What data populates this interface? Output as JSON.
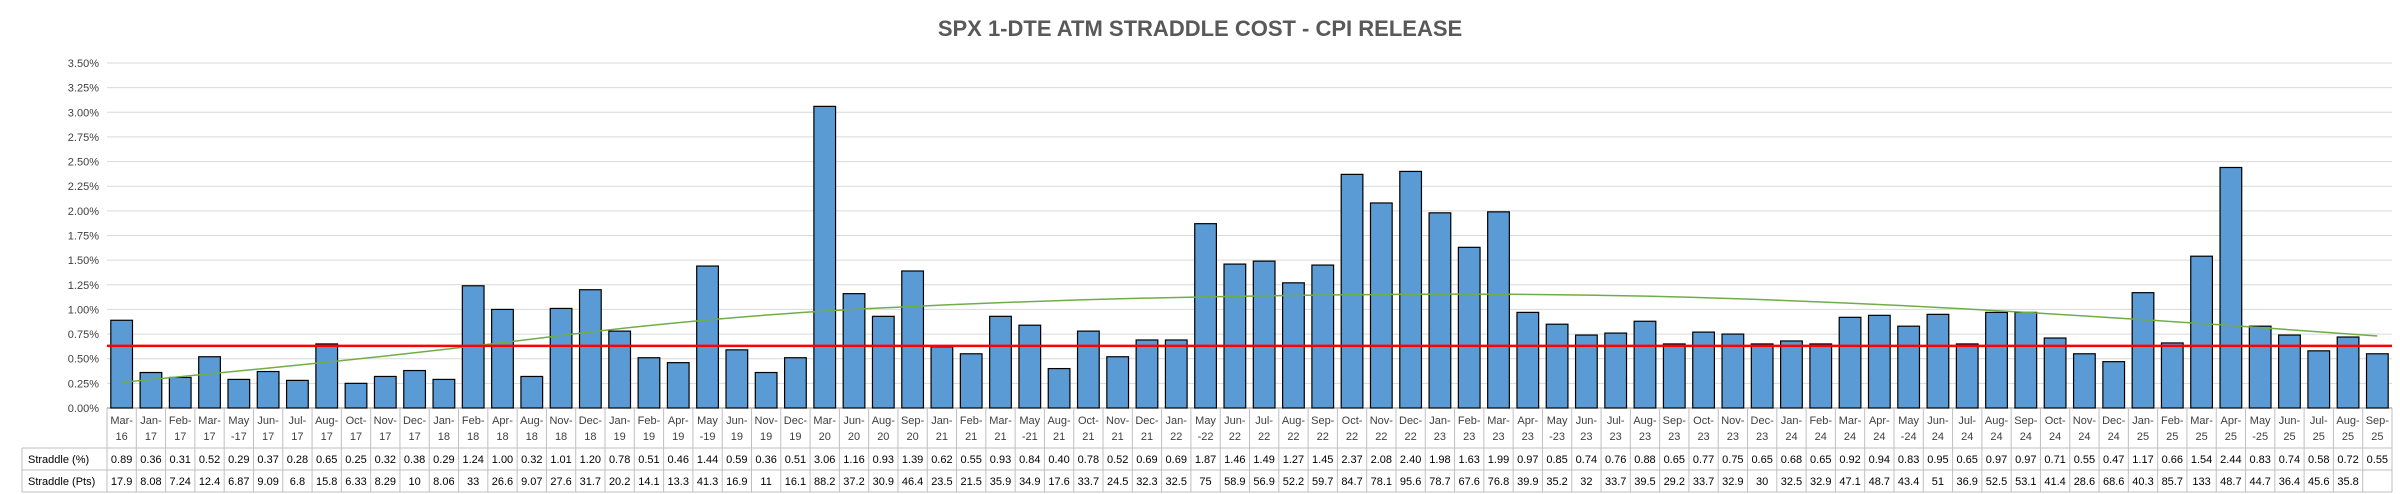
{
  "chart_data": {
    "type": "bar",
    "title": "SPX 1-DTE ATM STRADDLE COST - CPI RELEASE",
    "xlabel": "",
    "ylabel": "",
    "ylim": [
      0,
      3.5
    ],
    "yticks": [
      "0.00%",
      "0.25%",
      "0.50%",
      "0.75%",
      "1.00%",
      "1.25%",
      "1.50%",
      "1.75%",
      "2.00%",
      "2.25%",
      "2.50%",
      "2.75%",
      "3.00%",
      "3.25%",
      "3.50%"
    ],
    "grid": true,
    "categories": [
      [
        "Mar-",
        "16"
      ],
      [
        "Jan-",
        "17"
      ],
      [
        "Feb-",
        "17"
      ],
      [
        "Mar-",
        "17"
      ],
      [
        "May",
        "-17"
      ],
      [
        "Jun-",
        "17"
      ],
      [
        "Jul-",
        "17"
      ],
      [
        "Aug-",
        "17"
      ],
      [
        "Oct-",
        "17"
      ],
      [
        "Nov-",
        "17"
      ],
      [
        "Dec-",
        "17"
      ],
      [
        "Jan-",
        "18"
      ],
      [
        "Feb-",
        "18"
      ],
      [
        "Apr-",
        "18"
      ],
      [
        "Aug-",
        "18"
      ],
      [
        "Nov-",
        "18"
      ],
      [
        "Dec-",
        "18"
      ],
      [
        "Jan-",
        "19"
      ],
      [
        "Feb-",
        "19"
      ],
      [
        "Apr-",
        "19"
      ],
      [
        "May",
        "-19"
      ],
      [
        "Jun-",
        "19"
      ],
      [
        "Nov-",
        "19"
      ],
      [
        "Dec-",
        "19"
      ],
      [
        "Mar-",
        "20"
      ],
      [
        "Jun-",
        "20"
      ],
      [
        "Aug-",
        "20"
      ],
      [
        "Sep-",
        "20"
      ],
      [
        "Jan-",
        "21"
      ],
      [
        "Feb-",
        "21"
      ],
      [
        "Mar-",
        "21"
      ],
      [
        "May",
        "-21"
      ],
      [
        "Aug-",
        "21"
      ],
      [
        "Oct-",
        "21"
      ],
      [
        "Nov-",
        "21"
      ],
      [
        "Dec-",
        "21"
      ],
      [
        "Jan-",
        "22"
      ],
      [
        "May",
        "-22"
      ],
      [
        "Jun-",
        "22"
      ],
      [
        "Jul-",
        "22"
      ],
      [
        "Aug-",
        "22"
      ],
      [
        "Sep-",
        "22"
      ],
      [
        "Oct-",
        "22"
      ],
      [
        "Nov-",
        "22"
      ],
      [
        "Dec-",
        "22"
      ],
      [
        "Jan-",
        "23"
      ],
      [
        "Feb-",
        "23"
      ],
      [
        "Mar-",
        "23"
      ],
      [
        "Apr-",
        "23"
      ],
      [
        "May",
        "-23"
      ],
      [
        "Jun-",
        "23"
      ],
      [
        "Jul-",
        "23"
      ],
      [
        "Aug-",
        "23"
      ],
      [
        "Sep-",
        "23"
      ],
      [
        "Oct-",
        "23"
      ],
      [
        "Nov-",
        "23"
      ],
      [
        "Dec-",
        "23"
      ],
      [
        "Jan-",
        "24"
      ],
      [
        "Feb-",
        "24"
      ],
      [
        "Mar-",
        "24"
      ],
      [
        "Apr-",
        "24"
      ],
      [
        "May",
        "-24"
      ],
      [
        "Jun-",
        "24"
      ],
      [
        "Jul-",
        "24"
      ],
      [
        "Aug-",
        "24"
      ],
      [
        "Sep-",
        "24"
      ],
      [
        "Oct-",
        "24"
      ],
      [
        "Nov-",
        "24"
      ],
      [
        "Dec-",
        "24"
      ],
      [
        "Jan-",
        "25"
      ],
      [
        "Feb-",
        "25"
      ],
      [
        "Mar-",
        "25"
      ],
      [
        "Apr-",
        "25"
      ],
      [
        "May",
        "-25"
      ],
      [
        "Jun-",
        "25"
      ],
      [
        "Jul-",
        "25"
      ],
      [
        "Aug-",
        "25"
      ],
      [
        "Sep-",
        "25"
      ]
    ],
    "series": [
      {
        "name": "Straddle (%)",
        "color": "#5B9BD5",
        "values": [
          0.89,
          0.36,
          0.31,
          0.52,
          0.29,
          0.37,
          0.28,
          0.65,
          0.25,
          0.32,
          0.38,
          0.29,
          1.24,
          1.0,
          0.32,
          1.01,
          1.2,
          0.78,
          0.51,
          0.46,
          1.44,
          0.59,
          0.36,
          0.51,
          3.06,
          1.16,
          0.93,
          1.39,
          0.62,
          0.55,
          0.93,
          0.84,
          0.4,
          0.78,
          0.52,
          0.69,
          0.69,
          1.87,
          1.46,
          1.49,
          1.27,
          1.45,
          2.37,
          2.08,
          2.4,
          1.98,
          1.63,
          1.99,
          0.97,
          0.85,
          0.74,
          0.76,
          0.88,
          0.65,
          0.77,
          0.75,
          0.65,
          0.68,
          0.65,
          0.92,
          0.94,
          0.83,
          0.95,
          0.65,
          0.97,
          0.97,
          0.71,
          0.55,
          0.47,
          1.17,
          0.66,
          1.54,
          2.44,
          0.83,
          0.74,
          0.58,
          0.72,
          0.55
        ],
        "display": [
          "0.89",
          "0.36",
          "0.31",
          "0.52",
          "0.29",
          "0.37",
          "0.28",
          "0.65",
          "0.25",
          "0.32",
          "0.38",
          "0.29",
          "1.24",
          "1.00",
          "0.32",
          "1.01",
          "1.20",
          "0.78",
          "0.51",
          "0.46",
          "1.44",
          "0.59",
          "0.36",
          "0.51",
          "3.06",
          "1.16",
          "0.93",
          "1.39",
          "0.62",
          "0.55",
          "0.93",
          "0.84",
          "0.40",
          "0.78",
          "0.52",
          "0.69",
          "0.69",
          "1.87",
          "1.46",
          "1.49",
          "1.27",
          "1.45",
          "2.37",
          "2.08",
          "2.40",
          "1.98",
          "1.63",
          "1.99",
          "0.97",
          "0.85",
          "0.74",
          "0.76",
          "0.88",
          "0.65",
          "0.77",
          "0.75",
          "0.65",
          "0.68",
          "0.65",
          "0.92",
          "0.94",
          "0.83",
          "0.95",
          "0.65",
          "0.97",
          "0.97",
          "0.71",
          "0.55",
          "0.47",
          "1.17",
          "0.66",
          "1.54",
          "2.44",
          "0.83",
          "0.74",
          "0.58",
          "0.72",
          "0.55"
        ]
      },
      {
        "name": "Straddle (Pts)",
        "display": [
          "17.9",
          "8.08",
          "7.24",
          "12.4",
          "6.87",
          "9.09",
          "6.8",
          "15.8",
          "6.33",
          "8.29",
          "10",
          "8.06",
          "33",
          "26.6",
          "9.07",
          "27.6",
          "31.7",
          "20.2",
          "14.1",
          "13.3",
          "41.3",
          "16.9",
          "11",
          "16.1",
          "88.2",
          "37.2",
          "30.9",
          "46.4",
          "23.5",
          "21.5",
          "35.9",
          "34.9",
          "17.6",
          "33.7",
          "24.5",
          "32.3",
          "32.5",
          "75",
          "58.9",
          "56.9",
          "52.2",
          "59.7",
          "84.7",
          "78.1",
          "95.6",
          "78.7",
          "67.6",
          "76.8",
          "39.9",
          "35.2",
          "32",
          "33.7",
          "39.5",
          "29.2",
          "33.7",
          "32.9",
          "30",
          "32.5",
          "32.9",
          "47.1",
          "48.7",
          "43.4",
          "51",
          "36.9",
          "52.5",
          "53.1",
          "41.4",
          "28.6",
          "68.6",
          "40.3",
          "85.7",
          "133",
          "48.7",
          "44.7",
          "36.4",
          "45.6",
          "35.8",
          ""
        ]
      }
    ],
    "average_line": {
      "value": 0.63,
      "color": "#FF0000"
    },
    "trend_line": {
      "type": "polynomial",
      "color": "#70AD47",
      "points": [
        [
          0,
          0.26
        ],
        [
          10,
          0.55
        ],
        [
          20,
          0.92
        ],
        [
          30,
          1.08
        ],
        [
          40,
          1.15
        ],
        [
          50,
          1.16
        ],
        [
          60,
          1.06
        ],
        [
          70,
          0.88
        ],
        [
          77,
          0.73
        ]
      ]
    }
  }
}
